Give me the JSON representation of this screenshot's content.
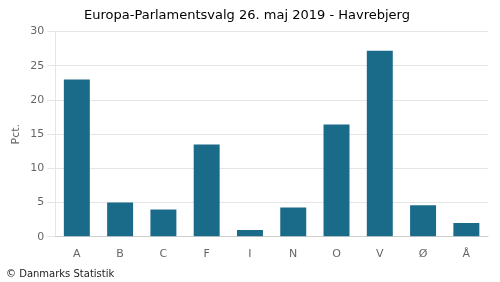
{
  "chart_data": {
    "type": "bar",
    "title": "Europa-Parlamentsvalg 26. maj 2019 - Havrebjerg",
    "categories": [
      "A",
      "B",
      "C",
      "F",
      "I",
      "N",
      "O",
      "V",
      "Ø",
      "Å"
    ],
    "values": [
      23.0,
      5.0,
      4.0,
      13.5,
      1.0,
      4.3,
      16.4,
      27.2,
      4.6,
      2.0
    ],
    "color": "#1a6b8a",
    "ylabel": "Pct.",
    "footer": "© Danmarks Statistik",
    "ylim": [
      0,
      30
    ],
    "yticks": [
      0,
      5,
      10,
      15,
      20,
      25,
      30
    ],
    "grid": true
  }
}
